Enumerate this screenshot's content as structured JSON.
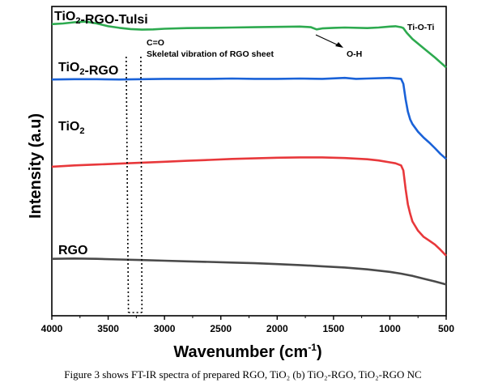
{
  "chart_data": {
    "type": "line",
    "xlabel": "Wavenumber (cm",
    "xlabel_sup": "-1",
    "xlabel_close": ")",
    "ylabel": "Intensity (a.u)",
    "xlim": [
      4000,
      500
    ],
    "x_reversed": true,
    "xticks": [
      4000,
      3500,
      3000,
      2500,
      2000,
      1500,
      1000,
      500
    ],
    "yticks": [],
    "ylim": [
      0,
      100
    ],
    "grid": false,
    "series": [
      {
        "name": "RGO",
        "label_parts": [
          {
            "t": "RGO"
          }
        ],
        "color": "#4a4a4a",
        "points": [
          [
            4000,
            18.4
          ],
          [
            3800,
            18.5
          ],
          [
            3600,
            18.4
          ],
          [
            3400,
            18.2
          ],
          [
            3200,
            18.0
          ],
          [
            3000,
            17.8
          ],
          [
            2800,
            17.6
          ],
          [
            2600,
            17.4
          ],
          [
            2400,
            17.2
          ],
          [
            2200,
            17.0
          ],
          [
            2000,
            16.7
          ],
          [
            1800,
            16.4
          ],
          [
            1600,
            16.0
          ],
          [
            1400,
            15.6
          ],
          [
            1200,
            15.0
          ],
          [
            1000,
            14.2
          ],
          [
            900,
            13.6
          ],
          [
            800,
            12.9
          ],
          [
            700,
            12.0
          ],
          [
            600,
            11.1
          ],
          [
            500,
            10.1
          ]
        ]
      },
      {
        "name": "TiO2",
        "label_parts": [
          {
            "t": "TiO"
          },
          {
            "t": "2",
            "sub": true
          }
        ],
        "color": "#e8383b",
        "points": [
          [
            4000,
            48.2
          ],
          [
            3800,
            48.6
          ],
          [
            3600,
            48.9
          ],
          [
            3400,
            49.2
          ],
          [
            3200,
            49.5
          ],
          [
            3000,
            49.8
          ],
          [
            2800,
            50.1
          ],
          [
            2600,
            50.4
          ],
          [
            2400,
            50.7
          ],
          [
            2200,
            50.9
          ],
          [
            2000,
            51.1
          ],
          [
            1800,
            51.2
          ],
          [
            1600,
            51.2
          ],
          [
            1400,
            51.0
          ],
          [
            1200,
            50.6
          ],
          [
            1100,
            50.2
          ],
          [
            1000,
            49.6
          ],
          [
            950,
            49.3
          ],
          [
            900,
            48.6
          ],
          [
            880,
            47.0
          ],
          [
            860,
            41.0
          ],
          [
            840,
            36.0
          ],
          [
            820,
            33.0
          ],
          [
            800,
            30.5
          ],
          [
            750,
            27.5
          ],
          [
            700,
            25.5
          ],
          [
            650,
            24.3
          ],
          [
            600,
            23.0
          ],
          [
            550,
            21.3
          ],
          [
            500,
            19.4
          ]
        ]
      },
      {
        "name": "TiO2-RGO",
        "label_parts": [
          {
            "t": "TiO"
          },
          {
            "t": "2",
            "sub": true
          },
          {
            "t": "-RGO"
          }
        ],
        "color": "#1a62d8",
        "points": [
          [
            4000,
            76.4
          ],
          [
            3800,
            76.5
          ],
          [
            3600,
            76.5
          ],
          [
            3400,
            76.4
          ],
          [
            3200,
            76.5
          ],
          [
            3000,
            76.6
          ],
          [
            2800,
            76.6
          ],
          [
            2600,
            76.6
          ],
          [
            2400,
            76.7
          ],
          [
            2200,
            76.6
          ],
          [
            2000,
            76.6
          ],
          [
            1800,
            76.7
          ],
          [
            1600,
            76.6
          ],
          [
            1400,
            76.9
          ],
          [
            1300,
            76.6
          ],
          [
            1200,
            76.7
          ],
          [
            1000,
            76.9
          ],
          [
            900,
            76.6
          ],
          [
            880,
            75.0
          ],
          [
            860,
            70.0
          ],
          [
            840,
            66.0
          ],
          [
            820,
            63.5
          ],
          [
            800,
            62.0
          ],
          [
            750,
            59.5
          ],
          [
            700,
            57.6
          ],
          [
            650,
            56.0
          ],
          [
            600,
            54.2
          ],
          [
            550,
            52.3
          ],
          [
            500,
            50.7
          ]
        ]
      },
      {
        "name": "TiO2-RGO-Tulsi",
        "label_parts": [
          {
            "t": "TiO"
          },
          {
            "t": "2",
            "sub": true
          },
          {
            "t": "-RGO-Tulsi"
          }
        ],
        "color": "#2daa4f",
        "points": [
          [
            4000,
            94.3
          ],
          [
            3900,
            94.5
          ],
          [
            3800,
            94.9
          ],
          [
            3700,
            95.1
          ],
          [
            3600,
            94.5
          ],
          [
            3500,
            93.6
          ],
          [
            3400,
            93.1
          ],
          [
            3300,
            92.7
          ],
          [
            3200,
            92.5
          ],
          [
            3100,
            92.6
          ],
          [
            3000,
            92.8
          ],
          [
            2800,
            93.0
          ],
          [
            2600,
            93.1
          ],
          [
            2400,
            93.2
          ],
          [
            2200,
            93.3
          ],
          [
            2000,
            93.4
          ],
          [
            1800,
            93.5
          ],
          [
            1700,
            93.3
          ],
          [
            1650,
            92.6
          ],
          [
            1600,
            92.9
          ],
          [
            1500,
            93.1
          ],
          [
            1400,
            93.2
          ],
          [
            1200,
            93.0
          ],
          [
            1100,
            93.2
          ],
          [
            1000,
            93.5
          ],
          [
            950,
            93.6
          ],
          [
            900,
            93.3
          ],
          [
            880,
            93.0
          ],
          [
            850,
            91.5
          ],
          [
            800,
            89.5
          ],
          [
            700,
            86.5
          ],
          [
            600,
            83.5
          ],
          [
            500,
            80.3
          ]
        ]
      }
    ],
    "annotations": {
      "co": "C=O",
      "skeletal": "Skeletal vibration of RGO sheet",
      "oh": "O-H",
      "tioti": "Ti-O-Ti"
    },
    "caption": "Figure 3 shows FT-IR spectra of prepared RGO, TiO₂ (b) TiO₂-RGO, TiO₂-RGO NC"
  }
}
